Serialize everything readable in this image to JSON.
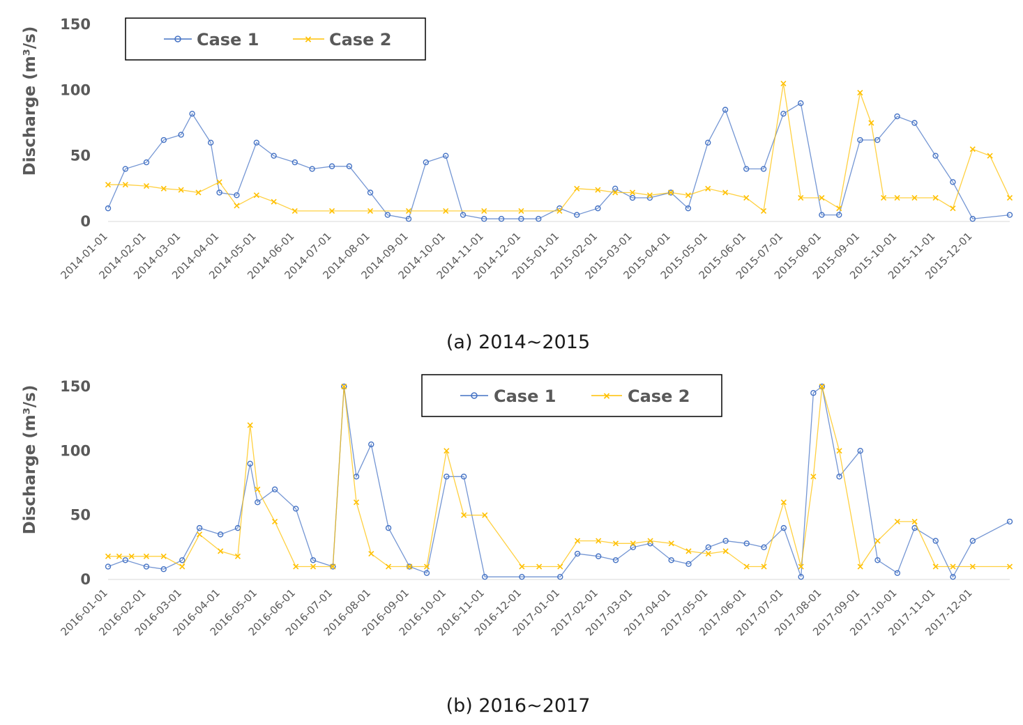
{
  "colors": {
    "case1": "#4472C4",
    "case2": "#FFC000",
    "axis": "#595959"
  },
  "chart_data": [
    {
      "type": "line",
      "caption": "(a) 2014~2015",
      "ylabel": "Discharge (m³/s)",
      "ylim": [
        0,
        150
      ],
      "yticks": [
        0,
        50,
        100,
        150
      ],
      "legend": {
        "placement": "top-left",
        "entries": [
          "Case 1",
          "Case 2"
        ]
      },
      "x_start": "2014-01-01",
      "x_end": "2015-12-31",
      "xticks": [
        "2014-01-01",
        "2014-02-01",
        "2014-03-01",
        "2014-04-01",
        "2014-05-01",
        "2014-06-01",
        "2014-07-01",
        "2014-08-01",
        "2014-09-01",
        "2014-10-01",
        "2014-11-01",
        "2014-12-01",
        "2015-01-01",
        "2015-02-01",
        "2015-03-01",
        "2015-04-01",
        "2015-05-01",
        "2015-06-01",
        "2015-07-01",
        "2015-08-01",
        "2015-09-01",
        "2015-10-01",
        "2015-11-01",
        "2015-12-01"
      ],
      "series": [
        {
          "name": "Case 1",
          "marker": "circle",
          "color_key": "case1",
          "x": [
            "2014-01-01",
            "2014-01-15",
            "2014-02-01",
            "2014-02-15",
            "2014-03-01",
            "2014-03-10",
            "2014-03-25",
            "2014-04-01",
            "2014-04-15",
            "2014-05-01",
            "2014-05-15",
            "2014-06-01",
            "2014-06-15",
            "2014-07-01",
            "2014-07-15",
            "2014-08-01",
            "2014-08-15",
            "2014-09-01",
            "2014-09-15",
            "2014-10-01",
            "2014-10-15",
            "2014-11-01",
            "2014-11-15",
            "2014-12-01",
            "2014-12-15",
            "2015-01-01",
            "2015-01-15",
            "2015-02-01",
            "2015-02-15",
            "2015-03-01",
            "2015-03-15",
            "2015-04-01",
            "2015-04-15",
            "2015-05-01",
            "2015-05-15",
            "2015-06-01",
            "2015-06-15",
            "2015-07-01",
            "2015-07-15",
            "2015-08-01",
            "2015-08-15",
            "2015-09-01",
            "2015-09-15",
            "2015-10-01",
            "2015-10-15",
            "2015-11-01",
            "2015-11-15",
            "2015-12-01",
            "2015-12-31"
          ],
          "y": [
            10,
            40,
            45,
            62,
            66,
            82,
            60,
            22,
            20,
            60,
            50,
            45,
            40,
            42,
            42,
            22,
            5,
            2,
            45,
            50,
            5,
            2,
            2,
            2,
            2,
            10,
            5,
            10,
            25,
            18,
            18,
            22,
            10,
            60,
            85,
            40,
            40,
            82,
            90,
            5,
            5,
            62,
            62,
            80,
            75,
            50,
            30,
            2,
            5
          ]
        },
        {
          "name": "Case 2",
          "marker": "x",
          "color_key": "case2",
          "x": [
            "2014-01-01",
            "2014-01-15",
            "2014-02-01",
            "2014-02-15",
            "2014-03-01",
            "2014-03-15",
            "2014-04-01",
            "2014-04-15",
            "2014-05-01",
            "2014-05-15",
            "2014-06-01",
            "2014-07-01",
            "2014-08-01",
            "2014-09-01",
            "2014-10-01",
            "2014-11-01",
            "2014-12-01",
            "2015-01-01",
            "2015-01-15",
            "2015-02-01",
            "2015-02-15",
            "2015-03-01",
            "2015-03-15",
            "2015-04-01",
            "2015-04-15",
            "2015-05-01",
            "2015-05-15",
            "2015-06-01",
            "2015-06-15",
            "2015-07-01",
            "2015-07-15",
            "2015-08-01",
            "2015-08-15",
            "2015-09-01",
            "2015-09-10",
            "2015-09-20",
            "2015-10-01",
            "2015-10-15",
            "2015-11-01",
            "2015-11-15",
            "2015-12-01",
            "2015-12-15",
            "2015-12-31"
          ],
          "y": [
            28,
            28,
            27,
            25,
            24,
            22,
            30,
            12,
            20,
            15,
            8,
            8,
            8,
            8,
            8,
            8,
            8,
            8,
            25,
            24,
            22,
            22,
            20,
            22,
            20,
            25,
            22,
            18,
            8,
            105,
            18,
            18,
            10,
            98,
            75,
            18,
            18,
            18,
            18,
            10,
            55,
            50,
            18
          ]
        }
      ]
    },
    {
      "type": "line",
      "caption": "(b) 2016~2017",
      "ylabel": "Discharge (m³/s)",
      "ylim": [
        0,
        150
      ],
      "yticks": [
        0,
        50,
        100,
        150
      ],
      "legend": {
        "placement": "top-center",
        "entries": [
          "Case 1",
          "Case 2"
        ]
      },
      "x_start": "2016-01-01",
      "x_end": "2017-12-31",
      "xticks": [
        "2016-01-01",
        "2016-02-01",
        "2016-03-01",
        "2016-04-01",
        "2016-05-01",
        "2016-06-01",
        "2016-07-01",
        "2016-08-01",
        "2016-09-01",
        "2016-10-01",
        "2016-11-01",
        "2016-12-01",
        "2017-01-01",
        "2017-02-01",
        "2017-03-01",
        "2017-04-01",
        "2017-05-01",
        "2017-06-01",
        "2017-07-01",
        "2017-08-01",
        "2017-09-01",
        "2017-10-01",
        "2017-11-01",
        "2017-12-01"
      ],
      "series": [
        {
          "name": "Case 1",
          "marker": "circle",
          "color_key": "case1",
          "x": [
            "2016-01-01",
            "2016-01-15",
            "2016-02-01",
            "2016-02-15",
            "2016-03-01",
            "2016-03-15",
            "2016-04-01",
            "2016-04-15",
            "2016-04-25",
            "2016-05-01",
            "2016-05-15",
            "2016-06-01",
            "2016-06-15",
            "2016-07-01",
            "2016-07-10",
            "2016-07-20",
            "2016-08-01",
            "2016-08-15",
            "2016-09-01",
            "2016-09-15",
            "2016-10-01",
            "2016-10-15",
            "2016-11-01",
            "2016-12-01",
            "2017-01-01",
            "2017-01-15",
            "2017-02-01",
            "2017-02-15",
            "2017-03-01",
            "2017-03-15",
            "2017-04-01",
            "2017-04-15",
            "2017-05-01",
            "2017-05-15",
            "2017-06-01",
            "2017-06-15",
            "2017-07-01",
            "2017-07-15",
            "2017-07-25",
            "2017-08-01",
            "2017-08-15",
            "2017-09-01",
            "2017-09-15",
            "2017-10-01",
            "2017-10-15",
            "2017-11-01",
            "2017-11-15",
            "2017-12-01",
            "2017-12-31"
          ],
          "y": [
            10,
            15,
            10,
            8,
            15,
            40,
            35,
            40,
            90,
            60,
            70,
            55,
            15,
            10,
            150,
            80,
            105,
            40,
            10,
            5,
            80,
            80,
            2,
            2,
            2,
            20,
            18,
            15,
            25,
            28,
            15,
            12,
            25,
            30,
            28,
            25,
            40,
            2,
            145,
            155,
            80,
            100,
            15,
            5,
            40,
            30,
            2,
            30,
            45
          ]
        },
        {
          "name": "Case 2",
          "marker": "x",
          "color_key": "case2",
          "x": [
            "2016-01-01",
            "2016-01-10",
            "2016-01-20",
            "2016-02-01",
            "2016-02-15",
            "2016-03-01",
            "2016-03-15",
            "2016-04-01",
            "2016-04-15",
            "2016-04-25",
            "2016-05-01",
            "2016-05-15",
            "2016-06-01",
            "2016-06-15",
            "2016-07-01",
            "2016-07-10",
            "2016-07-20",
            "2016-08-01",
            "2016-08-15",
            "2016-09-01",
            "2016-09-15",
            "2016-10-01",
            "2016-10-15",
            "2016-11-01",
            "2016-12-01",
            "2016-12-15",
            "2017-01-01",
            "2017-01-15",
            "2017-02-01",
            "2017-02-15",
            "2017-03-01",
            "2017-03-15",
            "2017-04-01",
            "2017-04-15",
            "2017-05-01",
            "2017-05-15",
            "2017-06-01",
            "2017-06-15",
            "2017-07-01",
            "2017-07-15",
            "2017-07-25",
            "2017-08-01",
            "2017-08-15",
            "2017-09-01",
            "2017-09-15",
            "2017-10-01",
            "2017-10-15",
            "2017-11-01",
            "2017-11-15",
            "2017-12-01",
            "2017-12-31"
          ],
          "y": [
            18,
            18,
            18,
            18,
            18,
            10,
            35,
            22,
            18,
            120,
            70,
            45,
            10,
            10,
            10,
            160,
            60,
            20,
            10,
            10,
            10,
            100,
            50,
            50,
            10,
            10,
            10,
            30,
            30,
            28,
            28,
            30,
            28,
            22,
            20,
            22,
            10,
            10,
            60,
            10,
            80,
            150,
            100,
            10,
            30,
            45,
            45,
            10,
            10,
            10,
            10
          ]
        }
      ]
    }
  ]
}
